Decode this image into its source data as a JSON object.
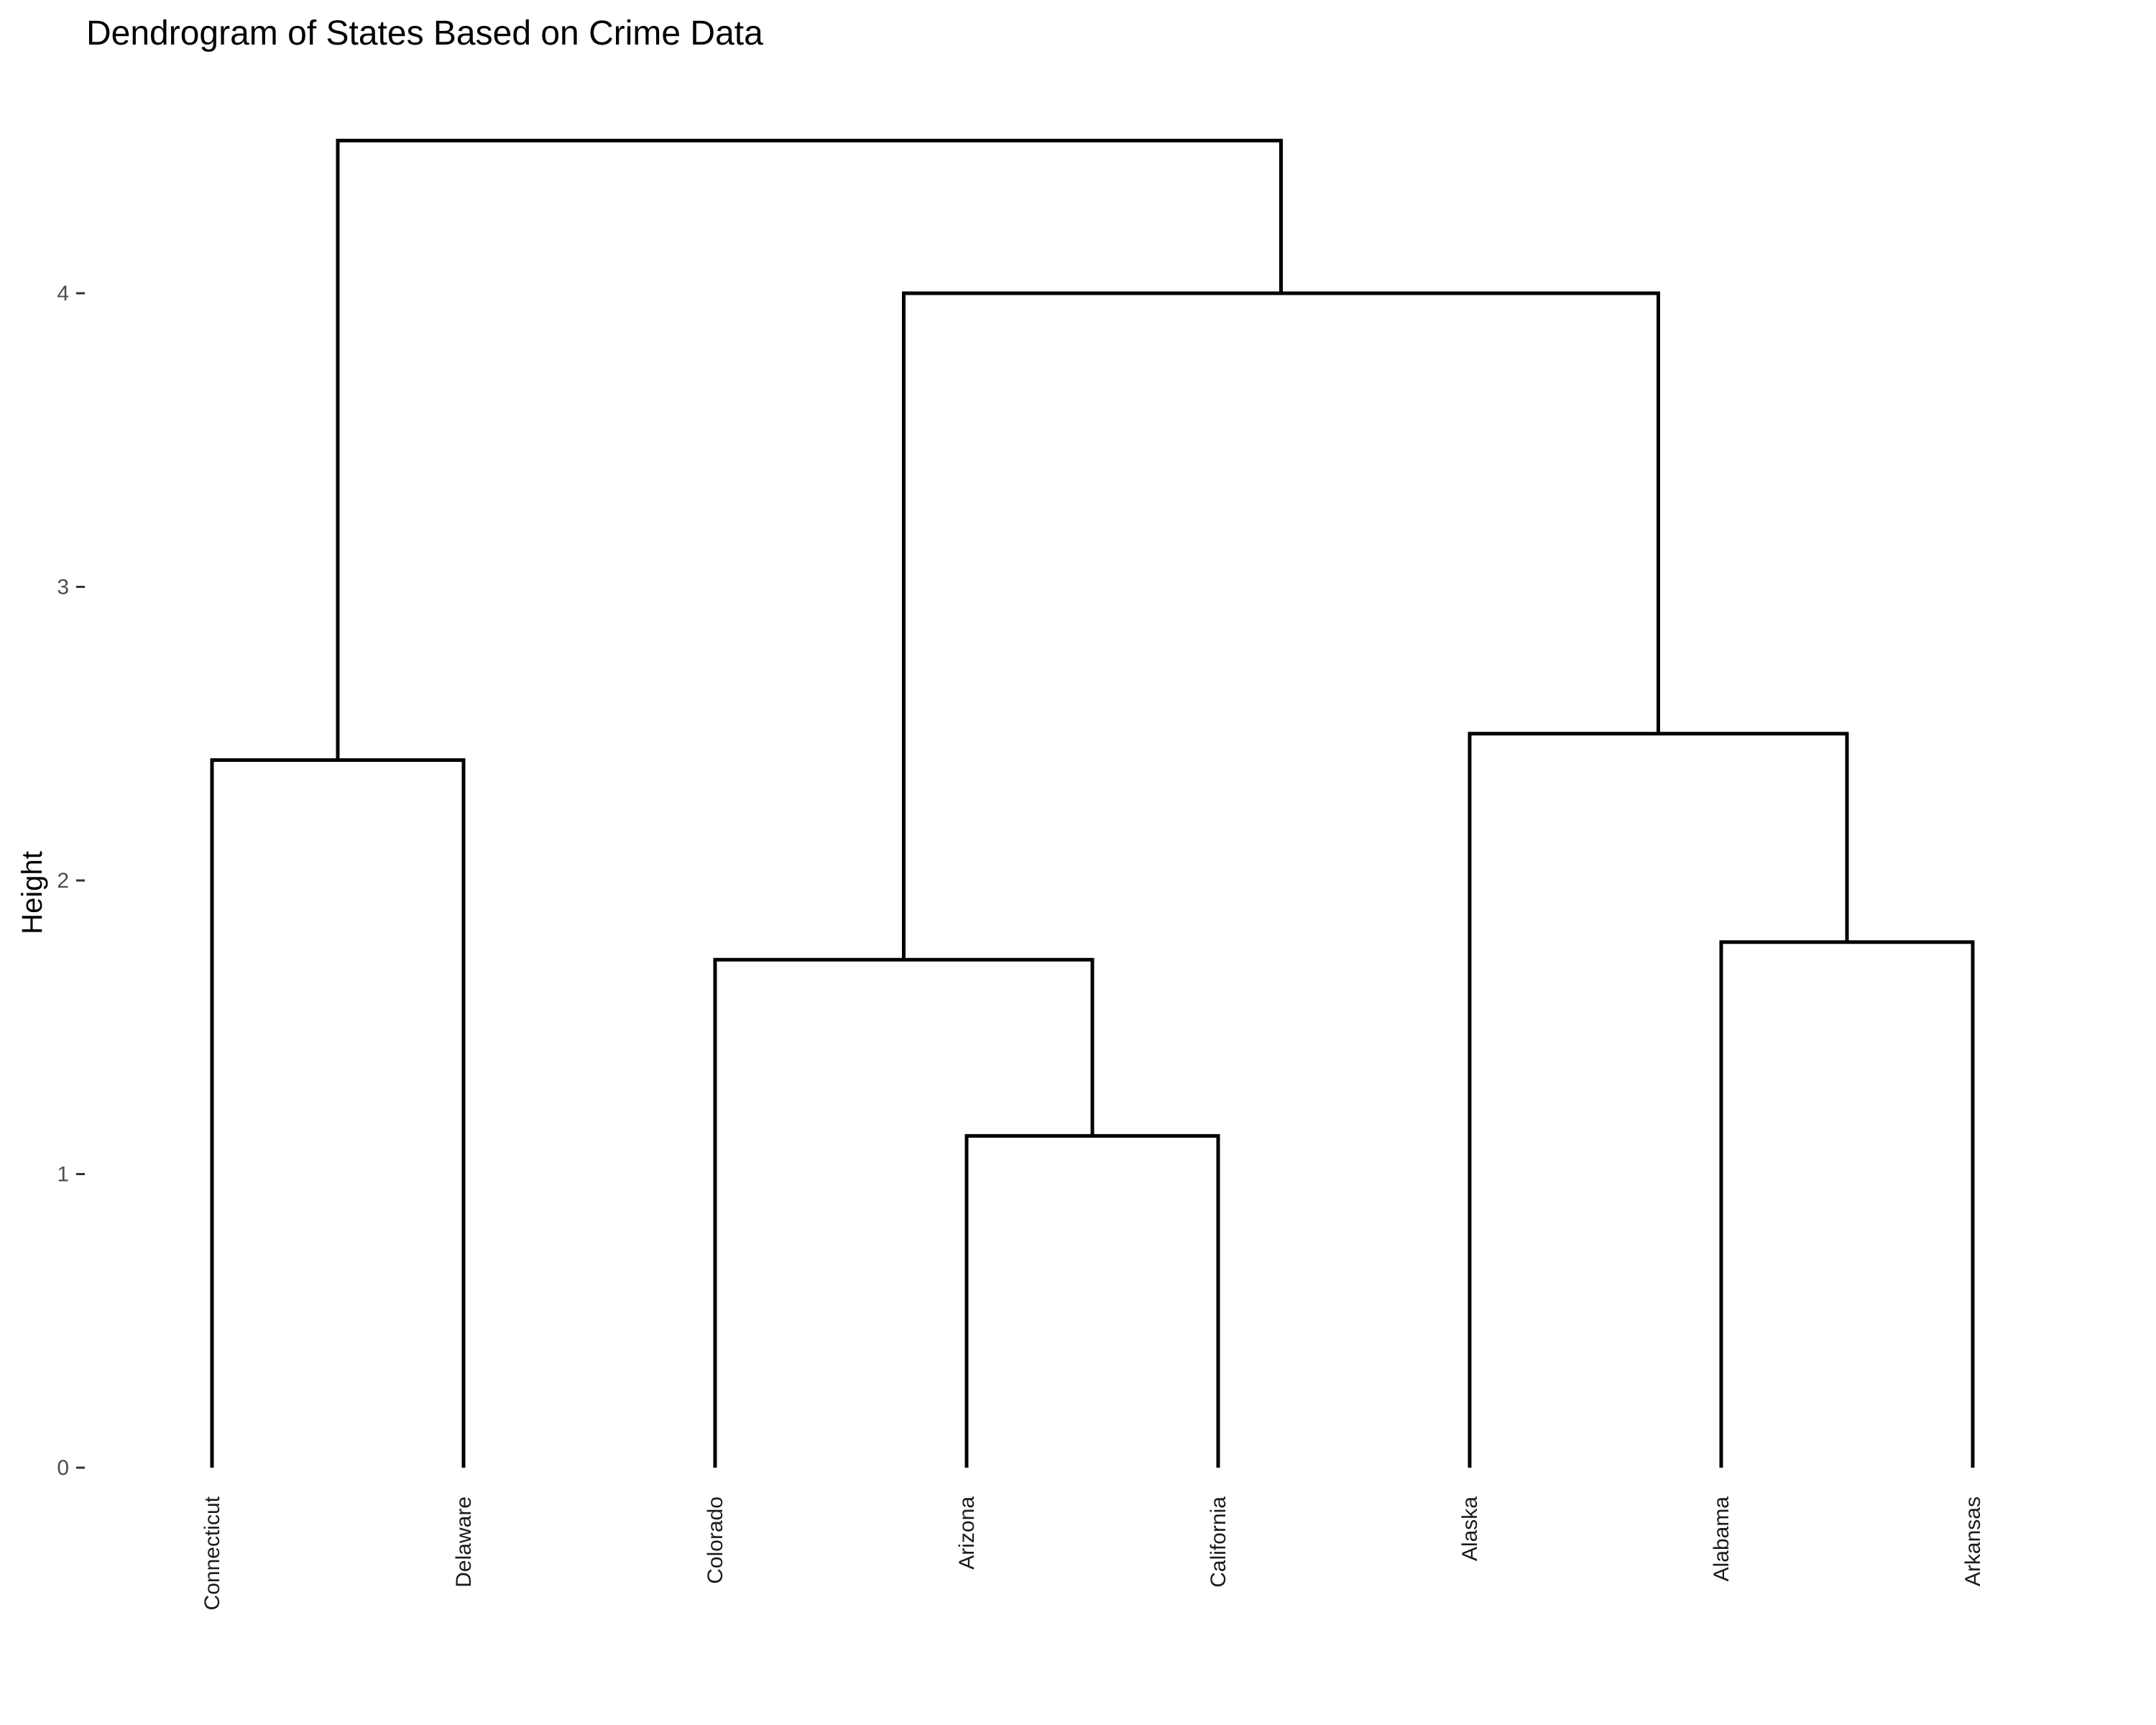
{
  "chart_data": {
    "type": "dendrogram",
    "title": "Dendrogram of States Based on Crime Data",
    "xlabel": "",
    "ylabel": "Height",
    "ylim": [
      0,
      4.6
    ],
    "yticks": [
      0,
      1,
      2,
      3,
      4
    ],
    "grid": false,
    "leaves": [
      "Connecticut",
      "Delaware",
      "Colorado",
      "Arizona",
      "California",
      "Alaska",
      "Alabama",
      "Arkansas"
    ],
    "merges": [
      {
        "left": "Arizona",
        "right": "California",
        "height": 1.13
      },
      {
        "left": "Alabama",
        "right": "Arkansas",
        "height": 1.79
      },
      {
        "left": "Colorado",
        "right": "Arizona+California",
        "height": 1.73
      },
      {
        "left": "Connecticut",
        "right": "Delaware",
        "height": 2.41
      },
      {
        "left": "Alaska",
        "right": "Alabama+Arkansas",
        "height": 2.5
      },
      {
        "left": "Colorado+Arizona+California",
        "right": "Alaska+Alabama+Arkansas",
        "height": 4.0
      },
      {
        "left": "Connecticut+Delaware",
        "right": "Colorado+Arizona+California+Alaska+Alabama+Arkansas",
        "height": 4.52
      }
    ]
  }
}
